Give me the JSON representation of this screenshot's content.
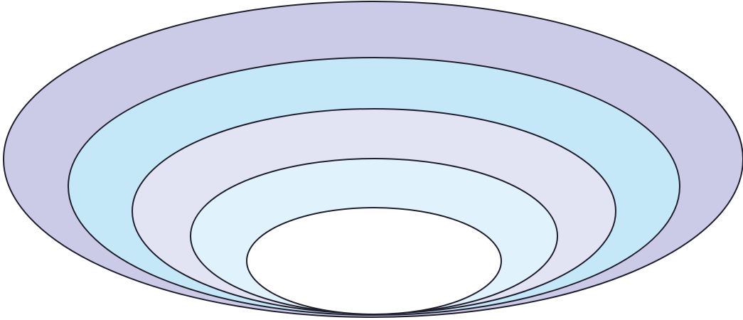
{
  "diagram": {
    "type": "nested-ellipses",
    "stroke_color": "#1f1f2e",
    "layers": [
      {
        "name": "layer-1-outer",
        "fill": "#cbcbe7"
      },
      {
        "name": "layer-2",
        "fill": "#c5e8f8"
      },
      {
        "name": "layer-3",
        "fill": "#e3e4f3"
      },
      {
        "name": "layer-4",
        "fill": "#e0f2fb"
      },
      {
        "name": "layer-5-inner",
        "fill": "#ffffff"
      }
    ]
  }
}
